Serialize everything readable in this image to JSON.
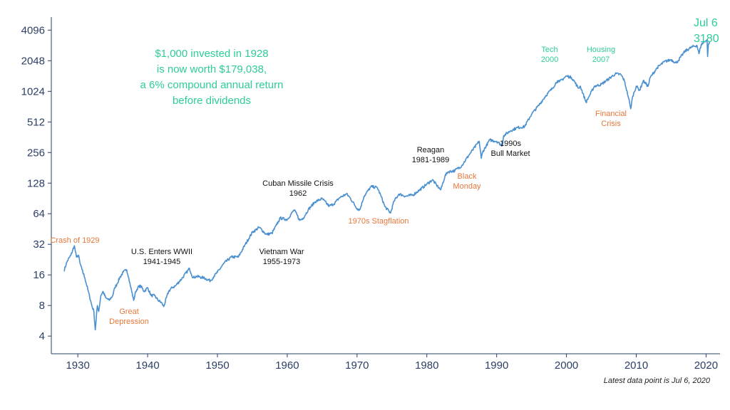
{
  "chart_data": {
    "type": "line",
    "title": "",
    "xlabel": "",
    "ylabel": "",
    "y_scale": "log2",
    "ylim": [
      3,
      5000
    ],
    "xlim": [
      1926,
      2022
    ],
    "y_ticks": [
      "4",
      "8",
      "16",
      "32",
      "64",
      "128",
      "256",
      "512",
      "1024",
      "2048",
      "4096"
    ],
    "x_ticks": [
      "1930",
      "1940",
      "1950",
      "1960",
      "1970",
      "1980",
      "1990",
      "2000",
      "2010",
      "2020"
    ],
    "grid": false,
    "colors": {
      "line": "#4a90d0",
      "good": "#2ecc9a",
      "bad": "#e8773a",
      "neutral": "#111111",
      "axis": "#2b3f66"
    },
    "series": [
      {
        "x": [
          1928.0,
          1928.5,
          1929.0,
          1929.5,
          1929.8,
          1930.1,
          1930.3,
          1930.6,
          1931.0,
          1931.5,
          1932.0,
          1932.3,
          1932.5,
          1932.8,
          1933.0,
          1933.3,
          1933.6,
          1934.0,
          1934.5,
          1935.0,
          1935.3,
          1935.6,
          1936.0,
          1936.5,
          1937.0,
          1937.3,
          1937.6,
          1938.0,
          1938.3,
          1938.6,
          1939.0,
          1939.5,
          1940.0,
          1940.5,
          1941.0,
          1941.5,
          1942.0,
          1942.3,
          1943.0,
          1943.5,
          1944.0,
          1945.0,
          1946.0,
          1946.5,
          1947.0,
          1948.0,
          1949.0,
          1949.5,
          1950.0,
          1951.0,
          1952.0,
          1953.0,
          1954.0,
          1955.0,
          1956.0,
          1957.0,
          1957.8,
          1958.5,
          1959.0,
          1960.0,
          1961.0,
          1961.8,
          1962.3,
          1963.0,
          1964.0,
          1965.0,
          1966.0,
          1966.7,
          1967.5,
          1968.5,
          1969.0,
          1970.0,
          1970.4,
          1971.0,
          1972.0,
          1972.9,
          1973.5,
          1974.0,
          1974.8,
          1975.3,
          1976.0,
          1977.0,
          1978.0,
          1979.0,
          1980.0,
          1980.8,
          1981.5,
          1982.0,
          1982.6,
          1983.0,
          1984.0,
          1985.0,
          1986.0,
          1987.5,
          1987.8,
          1988.0,
          1989.0,
          1990.0,
          1990.8,
          1991.0,
          1992.0,
          1993.0,
          1994.0,
          1995.0,
          1996.0,
          1997.0,
          1998.0,
          1998.7,
          1999.0,
          2000.0,
          2000.7,
          2001.0,
          2001.7,
          2002.0,
          2002.8,
          2003.2,
          2004.0,
          2005.0,
          2006.0,
          2007.0,
          2007.8,
          2008.3,
          2008.9,
          2009.2,
          2009.5,
          2010.0,
          2010.5,
          2011.0,
          2011.7,
          2012.0,
          2013.0,
          2014.0,
          2015.0,
          2015.7,
          2016.0,
          2017.0,
          2018.0,
          2018.7,
          2018.99,
          2019.3,
          2020.0,
          2020.15,
          2020.22,
          2020.35,
          2020.51
        ],
        "values": [
          17.5,
          22,
          25,
          31,
          24,
          25,
          21,
          18,
          15,
          11,
          8,
          7,
          4.6,
          8,
          7,
          10,
          11,
          9.5,
          9,
          10,
          12,
          13,
          15,
          17,
          18,
          15,
          12,
          9,
          11,
          12,
          12.5,
          11,
          12,
          10,
          10,
          9,
          8.5,
          7.8,
          11,
          12,
          12.5,
          15,
          18.5,
          15,
          15.5,
          15,
          14,
          15.5,
          17,
          21,
          24,
          24,
          32,
          42,
          47,
          40,
          41,
          50,
          58,
          56,
          70,
          55,
          58,
          70,
          84,
          90,
          76,
          80,
          92,
          100,
          92,
          72,
          70,
          95,
          118,
          116,
          93,
          75,
          65,
          85,
          100,
          95,
          98,
          110,
          125,
          138,
          120,
          110,
          150,
          165,
          170,
          190,
          240,
          330,
          225,
          260,
          340,
          330,
          300,
          375,
          420,
          450,
          460,
          610,
          740,
          920,
          1100,
          1300,
          1270,
          1450,
          1400,
          1330,
          1100,
          1150,
          800,
          900,
          1150,
          1200,
          1350,
          1520,
          1500,
          1300,
          880,
          690,
          920,
          1150,
          1050,
          1300,
          1150,
          1400,
          1750,
          2000,
          2100,
          1950,
          2050,
          2550,
          2800,
          2900,
          2400,
          2950,
          3250,
          3300,
          2250,
          3000,
          3180
        ]
      }
    ],
    "end_label": {
      "date": "Jul 6",
      "value": "3180"
    },
    "callout": {
      "lines": [
        "$1,000 invested in 1928",
        "is now worth $179,038,",
        "a 6% compound annual return",
        "before dividends"
      ]
    },
    "annotations": [
      {
        "lines": [
          "Crash of 1929"
        ],
        "tone": "bad"
      },
      {
        "lines": [
          "Great",
          "Depression"
        ],
        "tone": "bad"
      },
      {
        "lines": [
          "U.S. Enters WWII",
          "1941-1945"
        ],
        "tone": "neutral"
      },
      {
        "lines": [
          "Cuban Missile Crisis",
          "1962"
        ],
        "tone": "neutral"
      },
      {
        "lines": [
          "Vietnam War",
          "1955-1973"
        ],
        "tone": "neutral"
      },
      {
        "lines": [
          "1970s Stagflation"
        ],
        "tone": "bad"
      },
      {
        "lines": [
          "Reagan",
          "1981-1989"
        ],
        "tone": "neutral"
      },
      {
        "lines": [
          "Black",
          "Monday"
        ],
        "tone": "bad"
      },
      {
        "lines": [
          "1990s",
          "Bull Market"
        ],
        "tone": "neutral"
      },
      {
        "lines": [
          "Tech",
          "2000"
        ],
        "tone": "good"
      },
      {
        "lines": [
          "Housing",
          "2007"
        ],
        "tone": "good"
      },
      {
        "lines": [
          "Financial",
          "Crisis"
        ],
        "tone": "bad"
      }
    ],
    "footnote": "Latest data point is Jul 6, 2020"
  }
}
